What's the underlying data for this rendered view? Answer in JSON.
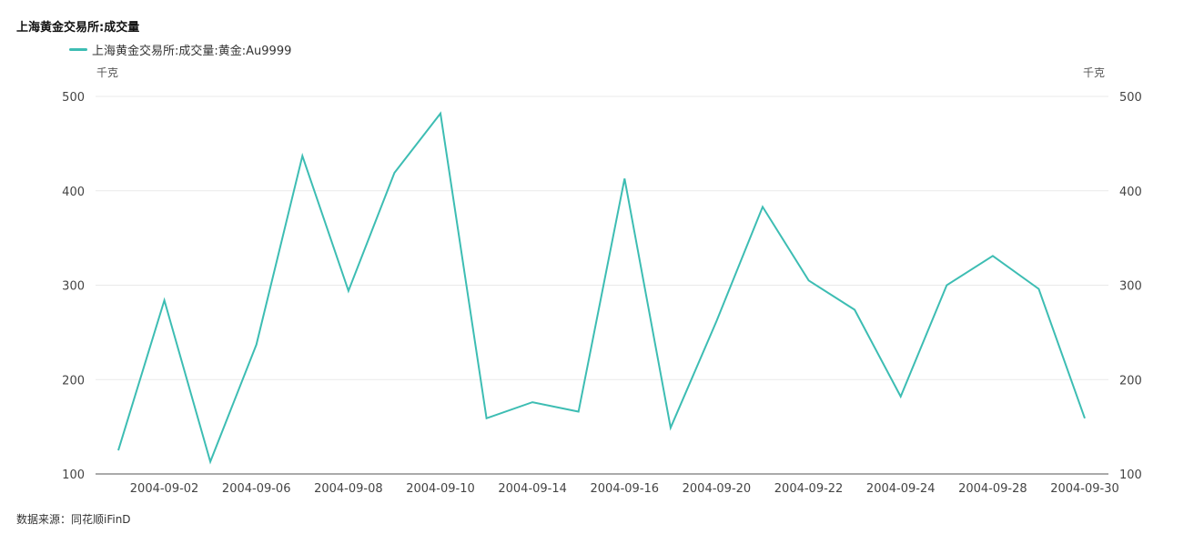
{
  "title": "上海黄金交易所:成交量",
  "source": "数据来源：同花顺iFinD",
  "colors": {
    "line": "#3dbdb3",
    "grid": "#e9e9e9",
    "axis": "#555555"
  },
  "chart_data": {
    "type": "line",
    "legend": "上海黄金交易所:成交量:黄金:Au9999",
    "legend_position": "top-left",
    "y_unit_left": "千克",
    "y_unit_right": "千克",
    "ylim": [
      100,
      500
    ],
    "yticks": [
      100,
      200,
      300,
      400,
      500
    ],
    "grid": true,
    "x_tick_labels": [
      "2004-09-02",
      "2004-09-06",
      "2004-09-08",
      "2004-09-10",
      "2004-09-14",
      "2004-09-16",
      "2004-09-20",
      "2004-09-22",
      "2004-09-24",
      "2004-09-28",
      "2004-09-30"
    ],
    "series": [
      {
        "name": "上海黄金交易所:成交量:黄金:Au9999",
        "x": [
          "2004-09-01",
          "2004-09-02",
          "2004-09-03",
          "2004-09-06",
          "2004-09-07",
          "2004-09-08",
          "2004-09-09",
          "2004-09-10",
          "2004-09-13",
          "2004-09-14",
          "2004-09-15",
          "2004-09-16",
          "2004-09-17",
          "2004-09-20",
          "2004-09-21",
          "2004-09-22",
          "2004-09-23",
          "2004-09-24",
          "2004-09-27",
          "2004-09-28",
          "2004-09-29",
          "2004-09-30"
        ],
        "values": [
          125,
          284,
          113,
          237,
          437,
          294,
          419,
          482,
          159,
          176,
          166,
          413,
          149,
          262,
          383,
          305,
          274,
          182,
          300,
          331,
          296,
          159
        ]
      }
    ]
  }
}
